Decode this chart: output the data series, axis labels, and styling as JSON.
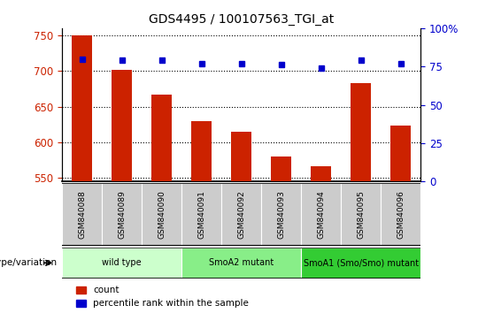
{
  "title": "GDS4495 / 100107563_TGI_at",
  "samples": [
    "GSM840088",
    "GSM840089",
    "GSM840090",
    "GSM840091",
    "GSM840092",
    "GSM840093",
    "GSM840094",
    "GSM840095",
    "GSM840096"
  ],
  "counts": [
    750,
    702,
    667,
    630,
    615,
    580,
    567,
    683,
    624
  ],
  "percentiles": [
    80,
    79,
    79,
    77,
    77,
    76,
    74,
    79,
    77
  ],
  "groups": [
    {
      "label": "wild type",
      "start": 0,
      "end": 3,
      "color": "#ccffcc"
    },
    {
      "label": "SmoA2 mutant",
      "start": 3,
      "end": 6,
      "color": "#88ee88"
    },
    {
      "label": "SmoA1 (Smo/Smo) mutant",
      "start": 6,
      "end": 9,
      "color": "#33cc33"
    }
  ],
  "ylim_left": [
    545,
    760
  ],
  "ylim_right": [
    0,
    100
  ],
  "yticks_left": [
    550,
    600,
    650,
    700,
    750
  ],
  "yticks_right": [
    0,
    25,
    50,
    75,
    100
  ],
  "bar_color": "#cc2200",
  "dot_color": "#0000cc",
  "bar_bottom": 545,
  "tick_color_left": "#cc2200",
  "tick_color_right": "#0000cc",
  "legend_count_color": "#cc2200",
  "legend_pct_color": "#0000cc",
  "sample_box_color": "#cccccc",
  "grid_color": "black"
}
